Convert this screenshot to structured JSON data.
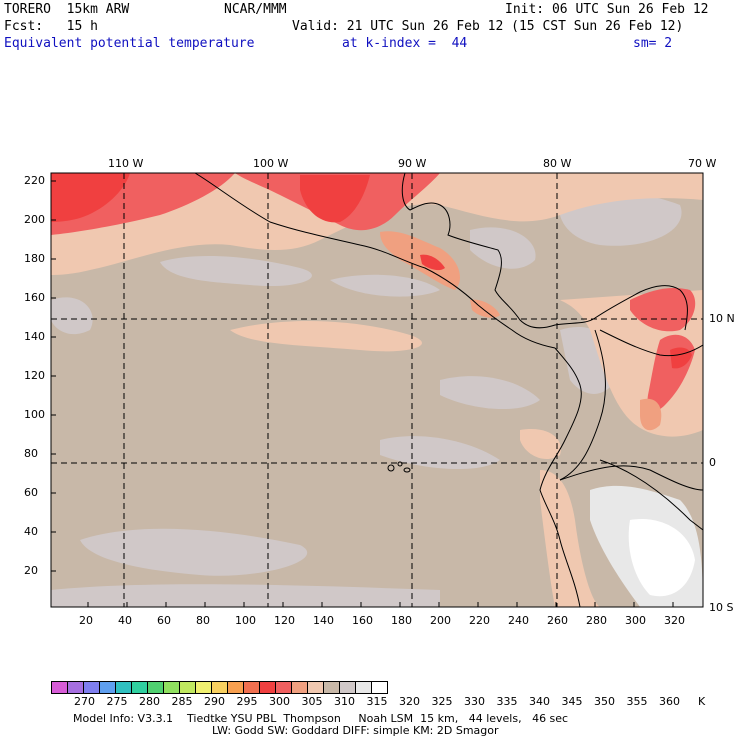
{
  "header": {
    "model": "TORERO  15km ARW",
    "center": "NCAR/MMM",
    "init": "Init: 06 UTC Sun 26 Feb 12",
    "fcst": "Fcst:   15 h",
    "valid": "Valid: 21 UTC Sun 26 Feb 12 (15 CST Sun 26 Feb 12)",
    "field": "Equivalent potential temperature",
    "level": "at k-index =  44",
    "smooth": "sm= 2"
  },
  "map": {
    "lon_labels": [
      "110 W",
      "100 W",
      "90 W",
      "80 W",
      "70 W"
    ],
    "lat_labels": [
      "10 N",
      "0",
      "10 S"
    ],
    "y_ticks": [
      "220",
      "200",
      "180",
      "160",
      "140",
      "120",
      "100",
      "80",
      "60",
      "40",
      "20"
    ],
    "x_ticks": [
      "20",
      "40",
      "60",
      "80",
      "100",
      "120",
      "140",
      "160",
      "180",
      "200",
      "220",
      "240",
      "260",
      "280",
      "300",
      "320"
    ]
  },
  "colorbar": {
    "colors": [
      "#d75cd7",
      "#a66fe0",
      "#7f7fef",
      "#5f9fef",
      "#30c0c0",
      "#30d0a0",
      "#50d070",
      "#90e060",
      "#c0e860",
      "#f0f070",
      "#f8d060",
      "#f8a050",
      "#f07050",
      "#f04040",
      "#f06060",
      "#f0a080",
      "#f0c8b0",
      "#c8b8a8",
      "#d0c8c8",
      "#e8e8e8",
      "#ffffff"
    ],
    "labels": [
      "270",
      "275",
      "280",
      "285",
      "290",
      "295",
      "300",
      "305",
      "310",
      "315",
      "320",
      "325",
      "330",
      "335",
      "340",
      "345",
      "350",
      "355",
      "360"
    ],
    "unit": "K"
  },
  "footer": {
    "line1": "Model Info: V3.3.1    Tiedtke YSU PBL  Thompson     Noah LSM  15 km,   44 levels,   46 sec",
    "line2": "LW: Godd SW: Goddard DIFF: simple KM: 2D Smagor"
  }
}
